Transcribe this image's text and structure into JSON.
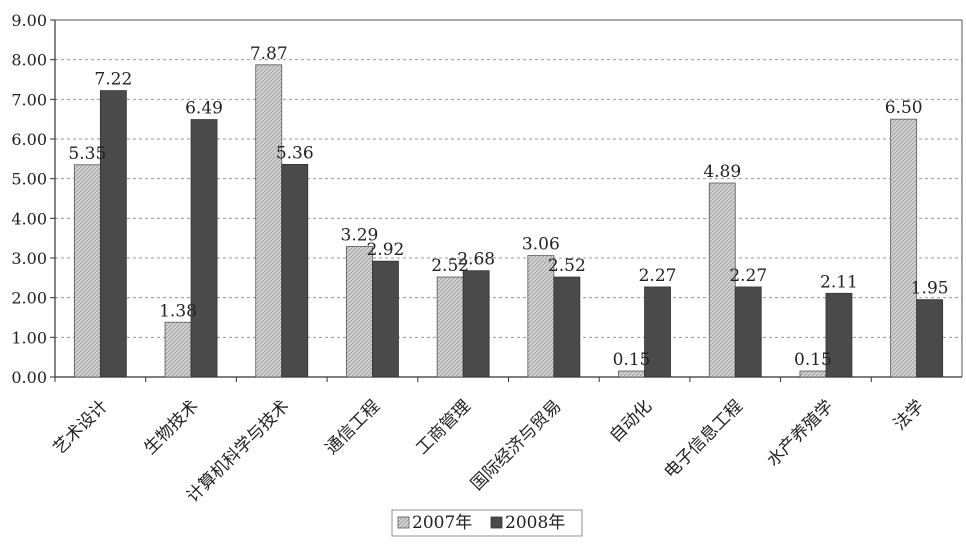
{
  "chart_data": {
    "type": "bar",
    "categories": [
      "艺术设计",
      "生物技术",
      "计算机科学与技术",
      "通信工程",
      "工商管理",
      "国际经济与贸易",
      "自动化",
      "电子信息工程",
      "水产养殖学",
      "法学"
    ],
    "series": [
      {
        "name": "2007年",
        "values": [
          5.35,
          1.38,
          7.87,
          3.29,
          2.52,
          3.06,
          0.15,
          4.89,
          0.15,
          6.5
        ],
        "labels": [
          "5.35",
          "1.38",
          "7.87",
          "3.29",
          "2.52",
          "3.06",
          "0.15",
          "4.89",
          "0.15",
          "6.50"
        ],
        "color": "#c4c4c4"
      },
      {
        "name": "2008年",
        "values": [
          7.22,
          6.49,
          5.36,
          2.92,
          2.68,
          2.52,
          2.27,
          2.27,
          2.11,
          1.95
        ],
        "labels": [
          "7.22",
          "6.49",
          "5.36",
          "2.92",
          "2.68",
          "2.52",
          "2.27",
          "2.27",
          "2.11",
          "1.95"
        ],
        "color": "#4a4a4a"
      }
    ],
    "ylim": [
      0,
      9
    ],
    "yticks": [
      "0.00",
      "1.00",
      "2.00",
      "3.00",
      "4.00",
      "5.00",
      "6.00",
      "7.00",
      "8.00",
      "9.00"
    ],
    "grid": true,
    "legend": "bottom-center",
    "title": "",
    "xlabel": "",
    "ylabel": ""
  }
}
